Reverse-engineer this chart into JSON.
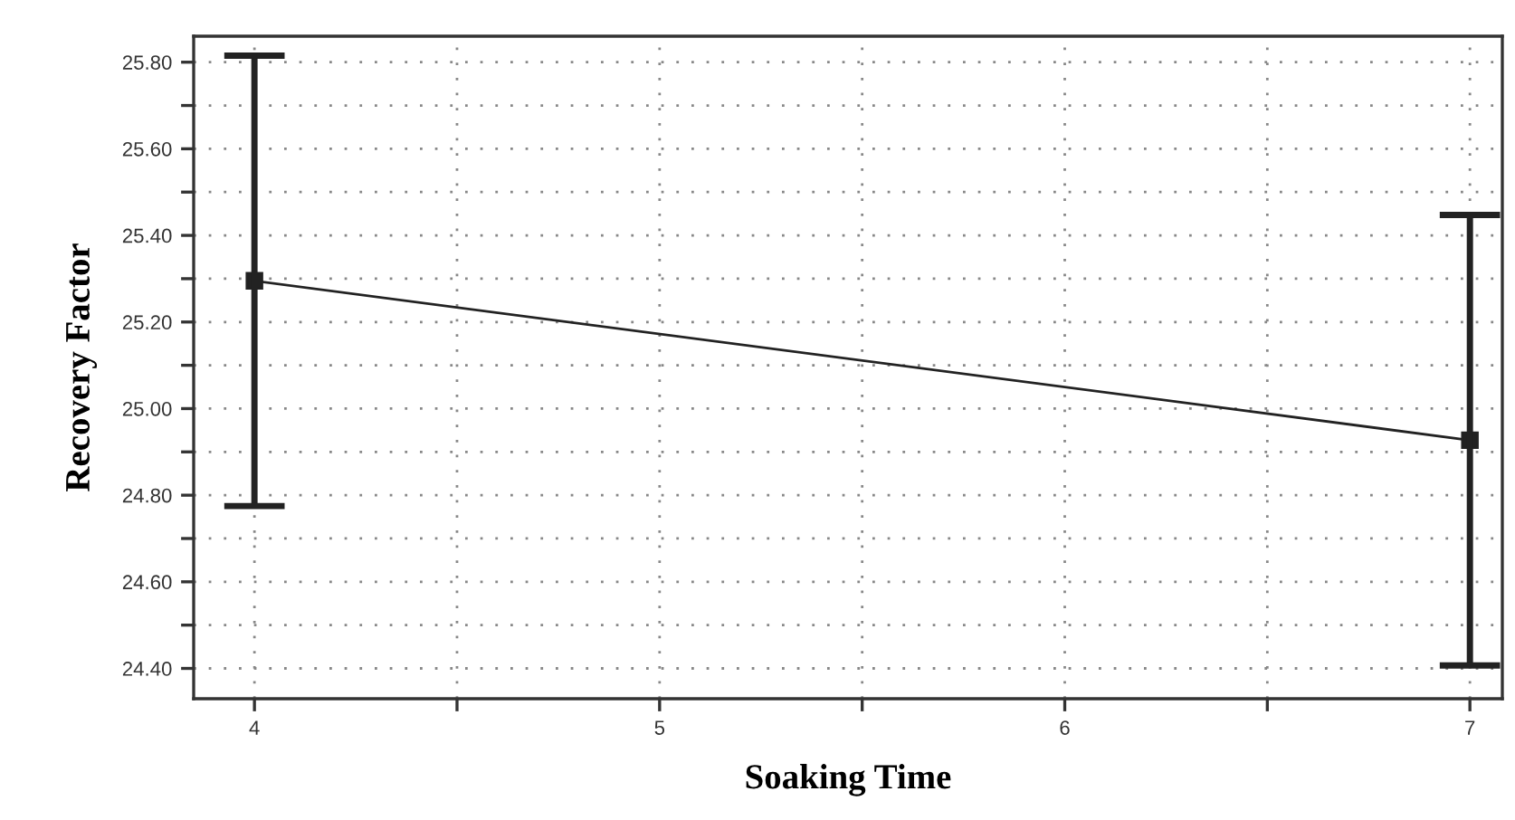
{
  "chart_data": {
    "type": "line",
    "xlabel": "Soaking Time",
    "ylabel": "Recovery Factor",
    "x": [
      4,
      7
    ],
    "series": [
      {
        "color": "#222222",
        "values": [
          25.295,
          24.927
        ],
        "errors": [
          0.52,
          0.52
        ]
      }
    ],
    "xlim": [
      3.85,
      7.08
    ],
    "ylim": [
      24.33,
      25.86
    ],
    "xticks": [
      4,
      {
        "value": 4.5,
        "label": null
      },
      5,
      {
        "value": 5.5,
        "label": null
      },
      6,
      {
        "value": 6.5,
        "label": null
      },
      7
    ],
    "yticks": [
      {
        "value": 24.4,
        "label": "24.40"
      },
      {
        "value": 24.5,
        "label": null
      },
      {
        "value": 24.6,
        "label": "24.60"
      },
      {
        "value": 24.7,
        "label": null
      },
      {
        "value": 24.8,
        "label": "24.80"
      },
      {
        "value": 24.9,
        "label": null
      },
      {
        "value": 25.0,
        "label": "25.00"
      },
      {
        "value": 25.1,
        "label": null
      },
      {
        "value": 25.2,
        "label": "25.20"
      },
      {
        "value": 25.3,
        "label": null
      },
      {
        "value": 25.4,
        "label": "25.40"
      },
      {
        "value": 25.5,
        "label": null
      },
      {
        "value": 25.6,
        "label": "25.60"
      },
      {
        "value": 25.7,
        "label": null
      },
      {
        "value": 25.8,
        "label": "25.80"
      }
    ],
    "grid": true,
    "marker": "square",
    "line_style": "solid"
  }
}
